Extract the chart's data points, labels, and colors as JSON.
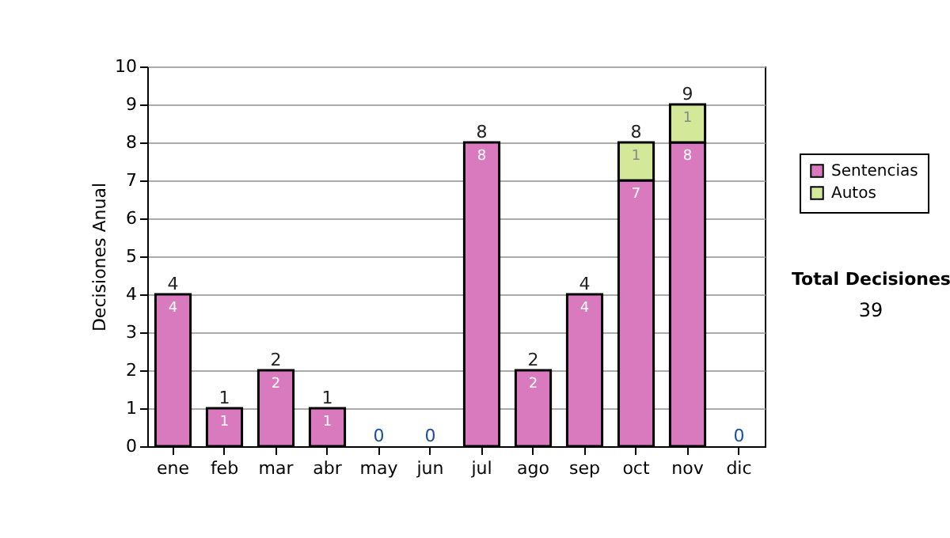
{
  "chart_data": {
    "type": "bar",
    "stacked": true,
    "ylabel": "Decisiones Anual",
    "categories": [
      "ene",
      "feb",
      "mar",
      "abr",
      "may",
      "jun",
      "jul",
      "ago",
      "sep",
      "oct",
      "nov",
      "dic"
    ],
    "series": [
      {
        "name": "Sentencias",
        "color": "#d97abf",
        "values": [
          4,
          1,
          2,
          1,
          0,
          0,
          8,
          2,
          4,
          7,
          8,
          0
        ],
        "value_labels": [
          "4",
          "1",
          "2",
          "1",
          null,
          null,
          "8",
          "2",
          "4",
          "7",
          "8",
          null
        ]
      },
      {
        "name": "Autos",
        "color": "#d4e89a",
        "values": [
          0,
          0,
          0,
          0,
          0,
          0,
          0,
          0,
          0,
          1,
          1,
          0
        ],
        "value_labels": [
          null,
          null,
          null,
          null,
          null,
          null,
          null,
          null,
          null,
          "1",
          "1",
          null
        ]
      }
    ],
    "totals": [
      "4",
      "1",
      "2",
      "1",
      "0",
      "0",
      "8",
      "2",
      "4",
      "8",
      "9",
      "0"
    ],
    "ylim": [
      0,
      10
    ],
    "yticks": [
      0,
      1,
      2,
      3,
      4,
      5,
      6,
      7,
      8,
      9,
      10
    ],
    "grid": "y",
    "legend": "right",
    "annotations": [
      "Total Decisiones",
      "39"
    ]
  }
}
